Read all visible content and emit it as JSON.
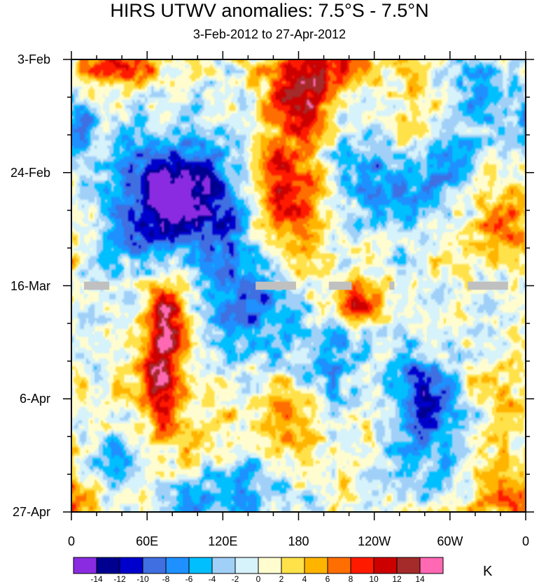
{
  "chart_data": {
    "type": "heatmap",
    "title": "HIRS UTWV anomalies: 7.5°S - 7.5°N",
    "subtitle": "3-Feb-2012 to 27-Apr-2012",
    "x_range": [
      0,
      360
    ],
    "y_range": [
      "3-Feb-2012",
      "27-Apr-2012"
    ],
    "days_total": 84,
    "x_ticks": [
      {
        "label": "0",
        "lon": 0
      },
      {
        "label": "60E",
        "lon": 60
      },
      {
        "label": "120E",
        "lon": 120
      },
      {
        "label": "180",
        "lon": 180
      },
      {
        "label": "120W",
        "lon": 240
      },
      {
        "label": "60W",
        "lon": 300
      },
      {
        "label": "0",
        "lon": 360
      }
    ],
    "y_ticks": [
      {
        "label": "3-Feb",
        "day": 0
      },
      {
        "label": "24-Feb",
        "day": 21
      },
      {
        "label": "16-Mar",
        "day": 42
      },
      {
        "label": "6-Apr",
        "day": 63
      },
      {
        "label": "27-Apr",
        "day": 84
      }
    ],
    "colorbar": {
      "units": "K",
      "levels": [
        -14,
        -12,
        -10,
        -8,
        -6,
        -4,
        -2,
        0,
        2,
        4,
        6,
        8,
        10,
        12,
        14
      ],
      "labels": [
        "-14",
        "-12",
        "-10",
        "-8",
        "-6",
        "-4",
        "-2",
        "0",
        "2",
        "4",
        "6",
        "8",
        "10",
        "12",
        "14"
      ],
      "colors": [
        "#8a2be2",
        "#000090",
        "#0000cd",
        "#3f6fe0",
        "#1e90ff",
        "#00bfff",
        "#a0d0f8",
        "#d6f2fb",
        "#fffdd0",
        "#ffe14a",
        "#ffb400",
        "#ff6e00",
        "#ff1a00",
        "#cd0000",
        "#a52a2a",
        "#ff69b4"
      ]
    },
    "features": [
      {
        "lon": 182,
        "day": 8,
        "value": 12,
        "spread_lon": 16,
        "spread_day": 4
      },
      {
        "lon": 168,
        "day": 20,
        "value": 8,
        "spread_lon": 18,
        "spread_day": 6
      },
      {
        "lon": 175,
        "day": 32,
        "value": 7,
        "spread_lon": 20,
        "spread_day": 6
      },
      {
        "lon": 225,
        "day": 45,
        "value": 12,
        "spread_lon": 14,
        "spread_day": 3
      },
      {
        "lon": 75,
        "day": 49,
        "value": 12,
        "spread_lon": 12,
        "spread_day": 5
      },
      {
        "lon": 70,
        "day": 60,
        "value": 12,
        "spread_lon": 12,
        "spread_day": 6
      },
      {
        "lon": 40,
        "day": 1,
        "value": 10,
        "spread_lon": 24,
        "spread_day": 3
      },
      {
        "lon": 200,
        "day": 1,
        "value": 10,
        "spread_lon": 30,
        "spread_day": 3
      },
      {
        "lon": 340,
        "day": 32,
        "value": 8,
        "spread_lon": 22,
        "spread_day": 8
      },
      {
        "lon": 85,
        "day": 40,
        "value": 6,
        "spread_lon": 20,
        "spread_day": 6
      },
      {
        "lon": 30,
        "day": 66,
        "value": 6,
        "spread_lon": 16,
        "spread_day": 6
      },
      {
        "lon": 175,
        "day": 68,
        "value": 6,
        "spread_lon": 18,
        "spread_day": 5
      },
      {
        "lon": 240,
        "day": 64,
        "value": 5,
        "spread_lon": 20,
        "spread_day": 6
      },
      {
        "lon": 335,
        "day": 60,
        "value": 5,
        "spread_lon": 18,
        "spread_day": 8
      },
      {
        "lon": 110,
        "day": 70,
        "value": 4,
        "spread_lon": 22,
        "spread_day": 5
      },
      {
        "lon": 290,
        "day": 8,
        "value": 6,
        "spread_lon": 20,
        "spread_day": 5
      },
      {
        "lon": 260,
        "day": 15,
        "value": 5,
        "spread_lon": 16,
        "spread_day": 4
      },
      {
        "lon": 340,
        "day": 80,
        "value": 6,
        "spread_lon": 20,
        "spread_day": 6
      },
      {
        "lon": 20,
        "day": 82,
        "value": 6,
        "spread_lon": 18,
        "spread_day": 3
      },
      {
        "lon": 60,
        "day": 27,
        "value": -11,
        "spread_lon": 30,
        "spread_day": 9
      },
      {
        "lon": 100,
        "day": 24,
        "value": -10,
        "spread_lon": 24,
        "spread_day": 6
      },
      {
        "lon": 115,
        "day": 38,
        "value": -7,
        "spread_lon": 30,
        "spread_day": 8
      },
      {
        "lon": 145,
        "day": 47,
        "value": -6,
        "spread_lon": 22,
        "spread_day": 7
      },
      {
        "lon": 30,
        "day": 75,
        "value": -7,
        "spread_lon": 16,
        "spread_day": 10
      },
      {
        "lon": 240,
        "day": 22,
        "value": -7,
        "spread_lon": 24,
        "spread_day": 7
      },
      {
        "lon": 300,
        "day": 18,
        "value": -6,
        "spread_lon": 30,
        "spread_day": 8
      },
      {
        "lon": 270,
        "day": 62,
        "value": -8,
        "spread_lon": 22,
        "spread_day": 6
      },
      {
        "lon": 290,
        "day": 70,
        "value": -5,
        "spread_lon": 30,
        "spread_day": 8
      },
      {
        "lon": 210,
        "day": 58,
        "value": -6,
        "spread_lon": 20,
        "spread_day": 8
      },
      {
        "lon": 320,
        "day": 6,
        "value": -7,
        "spread_lon": 20,
        "spread_day": 4
      },
      {
        "lon": 10,
        "day": 12,
        "value": -8,
        "spread_lon": 10,
        "spread_day": 3
      },
      {
        "lon": 340,
        "day": 45,
        "value": -4,
        "spread_lon": 20,
        "spread_day": 8
      },
      {
        "lon": 100,
        "day": 82,
        "value": -6,
        "spread_lon": 20,
        "spread_day": 3
      },
      {
        "lon": 140,
        "day": 78,
        "value": -5,
        "spread_lon": 20,
        "spread_day": 5
      }
    ],
    "missing_data": [
      {
        "lon_start": 10,
        "lon_end": 30,
        "day_start": 41.5,
        "day_end": 42.5
      },
      {
        "lon_start": 146,
        "lon_end": 178,
        "day_start": 41.5,
        "day_end": 42.5
      },
      {
        "lon_start": 204,
        "lon_end": 222,
        "day_start": 41.5,
        "day_end": 42.5
      },
      {
        "lon_start": 252,
        "lon_end": 256,
        "day_start": 41.5,
        "day_end": 42.5
      },
      {
        "lon_start": 314,
        "lon_end": 346,
        "day_start": 41.5,
        "day_end": 42.5
      }
    ]
  }
}
